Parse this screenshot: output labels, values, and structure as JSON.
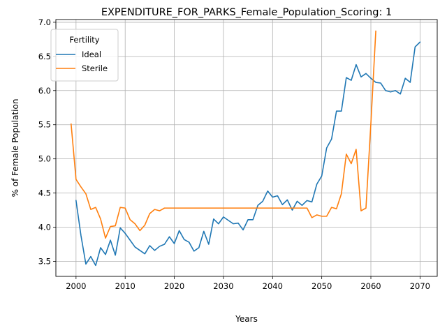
{
  "chart_data": {
    "type": "line",
    "title": "EXPENDITURE_FOR_PARKS_Female_Population_Scoring: 1",
    "xlabel": "Years",
    "ylabel": "% of Female Population",
    "xlim": [
      1995.9,
      2073.5
    ],
    "ylim": [
      3.28,
      7.04
    ],
    "xticks": [
      2000,
      2010,
      2020,
      2030,
      2040,
      2050,
      2060,
      2070
    ],
    "yticks": [
      3.5,
      4.0,
      4.5,
      5.0,
      5.5,
      6.0,
      6.5,
      7.0
    ],
    "xtick_labels": [
      "2000",
      "2010",
      "2020",
      "2030",
      "2040",
      "2050",
      "2060",
      "2070"
    ],
    "ytick_labels": [
      "3.5",
      "4.0",
      "4.5",
      "5.0",
      "5.5",
      "6.0",
      "6.5",
      "7.0"
    ],
    "grid": true,
    "legend": {
      "title": "Fertility",
      "placement": "top-left"
    },
    "series": [
      {
        "name": "Ideal",
        "color": "#1f77b4",
        "x": [
          2000,
          2001,
          2002,
          2003,
          2004,
          2005,
          2006,
          2007,
          2008,
          2009,
          2010,
          2011,
          2012,
          2013,
          2014,
          2015,
          2016,
          2017,
          2018,
          2019,
          2020,
          2021,
          2022,
          2023,
          2024,
          2025,
          2026,
          2027,
          2028,
          2029,
          2030,
          2031,
          2032,
          2033,
          2034,
          2035,
          2036,
          2037,
          2038,
          2039,
          2040,
          2041,
          2042,
          2043,
          2044,
          2045,
          2046,
          2047,
          2048,
          2049,
          2050,
          2051,
          2052,
          2053,
          2054,
          2055,
          2056,
          2057,
          2058,
          2059,
          2060,
          2061,
          2062,
          2063,
          2064,
          2065,
          2066,
          2067,
          2068,
          2069,
          2070
        ],
        "y": [
          4.39,
          3.88,
          3.46,
          3.57,
          3.44,
          3.7,
          3.6,
          3.81,
          3.59,
          3.99,
          3.91,
          3.81,
          3.71,
          3.66,
          3.61,
          3.73,
          3.66,
          3.72,
          3.75,
          3.86,
          3.76,
          3.95,
          3.82,
          3.78,
          3.65,
          3.7,
          3.94,
          3.75,
          4.12,
          4.05,
          4.15,
          4.1,
          4.05,
          4.06,
          3.96,
          4.11,
          4.11,
          4.32,
          4.38,
          4.53,
          4.44,
          4.46,
          4.33,
          4.4,
          4.25,
          4.38,
          4.32,
          4.39,
          4.37,
          4.63,
          4.75,
          5.16,
          5.29,
          5.7,
          5.7,
          6.19,
          6.15,
          6.38,
          6.2,
          6.25,
          6.18,
          6.12,
          6.11,
          6.0,
          5.98,
          6.0,
          5.95,
          6.18,
          6.12,
          6.64,
          6.71
        ]
      },
      {
        "name": "Sterile",
        "color": "#ff7f0e",
        "x": [
          1999,
          2000,
          2001,
          2002,
          2003,
          2004,
          2005,
          2006,
          2007,
          2008,
          2009,
          2010,
          2011,
          2012,
          2013,
          2014,
          2015,
          2016,
          2017,
          2018,
          2019,
          2020,
          2021,
          2022,
          2023,
          2024,
          2025,
          2026,
          2027,
          2028,
          2029,
          2030,
          2031,
          2032,
          2033,
          2034,
          2035,
          2036,
          2037,
          2038,
          2039,
          2040,
          2041,
          2042,
          2043,
          2044,
          2045,
          2046,
          2047,
          2048,
          2049,
          2050,
          2051,
          2052,
          2053,
          2054,
          2055,
          2056,
          2057,
          2058,
          2059,
          2060,
          2061
        ],
        "y": [
          5.51,
          4.7,
          4.59,
          4.49,
          4.26,
          4.29,
          4.12,
          3.84,
          4.01,
          4.02,
          4.29,
          4.28,
          4.11,
          4.05,
          3.95,
          4.03,
          4.2,
          4.26,
          4.24,
          4.28,
          4.28,
          4.28,
          4.28,
          4.28,
          4.28,
          4.28,
          4.28,
          4.28,
          4.28,
          4.28,
          4.28,
          4.28,
          4.28,
          4.28,
          4.28,
          4.28,
          4.28,
          4.28,
          4.28,
          4.28,
          4.28,
          4.28,
          4.28,
          4.28,
          4.28,
          4.28,
          4.28,
          4.28,
          4.28,
          4.14,
          4.18,
          4.16,
          4.16,
          4.29,
          4.27,
          4.49,
          5.07,
          4.93,
          5.14,
          4.24,
          4.28,
          5.52,
          6.87
        ]
      }
    ]
  }
}
